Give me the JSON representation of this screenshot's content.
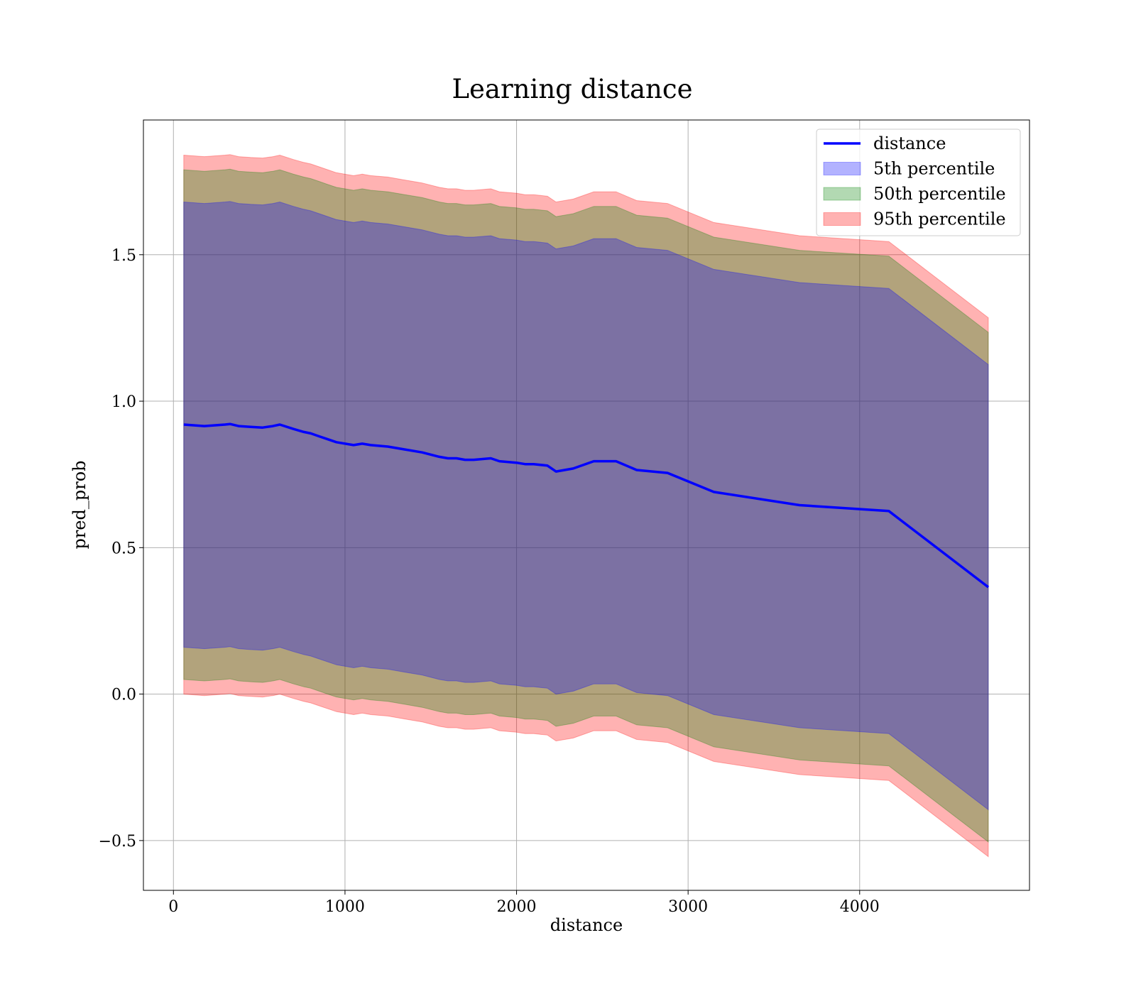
{
  "chart_data": {
    "type": "line",
    "title": "Learning distance",
    "xlabel": "distance",
    "ylabel": "pred_prob",
    "xlim": [
      -175,
      4990
    ],
    "ylim": [
      -0.67,
      1.96
    ],
    "xticks": [
      0,
      1000,
      2000,
      3000,
      4000
    ],
    "xtick_labels": [
      "0",
      "1000",
      "2000",
      "3000",
      "4000"
    ],
    "yticks": [
      -0.5,
      0.0,
      0.5,
      1.0,
      1.5
    ],
    "ytick_labels": [
      "−0.5",
      "0.0",
      "0.5",
      "1.0",
      "1.5"
    ],
    "grid": true,
    "legend_position": "top-right",
    "x": [
      60,
      180,
      300,
      330,
      380,
      450,
      520,
      580,
      620,
      700,
      760,
      800,
      850,
      900,
      950,
      1050,
      1100,
      1150,
      1250,
      1350,
      1450,
      1550,
      1600,
      1650,
      1700,
      1750,
      1850,
      1900,
      2000,
      2050,
      2100,
      2180,
      2230,
      2330,
      2450,
      2580,
      2700,
      2880,
      3150,
      3650,
      4170,
      4750
    ],
    "series": [
      {
        "name": "distance",
        "kind": "line",
        "color": "#0000ff",
        "values": [
          0.92,
          0.915,
          0.92,
          0.922,
          0.915,
          0.912,
          0.91,
          0.915,
          0.92,
          0.905,
          0.895,
          0.89,
          0.88,
          0.87,
          0.86,
          0.85,
          0.855,
          0.85,
          0.845,
          0.835,
          0.825,
          0.81,
          0.805,
          0.805,
          0.8,
          0.8,
          0.805,
          0.795,
          0.79,
          0.785,
          0.785,
          0.78,
          0.76,
          0.77,
          0.795,
          0.795,
          0.765,
          0.755,
          0.69,
          0.645,
          0.625,
          0.365
        ]
      },
      {
        "name": "5th percentile",
        "kind": "band",
        "color": "#0000ff",
        "half_width": 0.76
      },
      {
        "name": "50th percentile",
        "kind": "band",
        "color": "#008000",
        "half_width": 0.87
      },
      {
        "name": "95th percentile",
        "kind": "band",
        "color": "#ff0000",
        "half_width": 0.92
      }
    ]
  }
}
